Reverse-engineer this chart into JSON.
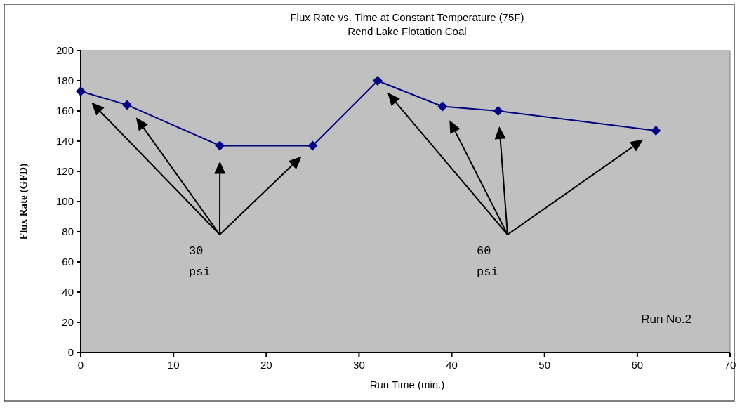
{
  "chart_data": {
    "type": "line",
    "title": "Flux Rate vs. Time at Constant Temperature (75F)",
    "subtitle": "Rend Lake Flotation Coal",
    "xlabel": "Run Time (min.)",
    "ylabel": "Flux Rate (GFD)",
    "x": [
      0,
      5,
      15,
      25,
      32,
      39,
      45,
      62
    ],
    "series": [
      {
        "color": "#000080",
        "values": [
          173,
          164,
          137,
          137,
          180,
          163,
          160,
          147
        ]
      }
    ],
    "xlim": [
      0,
      70
    ],
    "xticks": [
      0,
      10,
      20,
      30,
      40,
      50,
      60,
      70
    ],
    "ylim": [
      0,
      200
    ],
    "yticks": [
      0,
      20,
      40,
      60,
      80,
      100,
      120,
      140,
      160,
      180,
      200
    ],
    "grid": false,
    "marker": "diamond",
    "line_style": "solid",
    "annotations": [
      "30 psi",
      "60 psi",
      "Run No.2"
    ]
  }
}
